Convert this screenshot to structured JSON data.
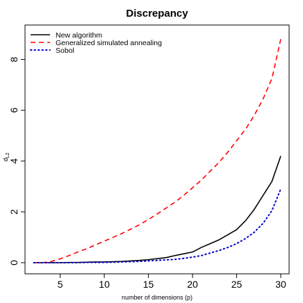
{
  "chart_data": {
    "type": "line",
    "title": "Discrepancy",
    "xlabel": "number of dimensions (p)",
    "ylabel": "d",
    "ylabel_subscript": "L2",
    "xlim": [
      2,
      30
    ],
    "ylim": [
      0,
      9
    ],
    "xticks": [
      5,
      10,
      15,
      20,
      25,
      30
    ],
    "yticks": [
      0,
      2,
      4,
      6,
      8
    ],
    "legend_position": "top-left",
    "x": [
      2,
      3,
      4,
      5,
      6,
      7,
      8,
      9,
      10,
      11,
      12,
      13,
      14,
      15,
      16,
      17,
      18,
      19,
      20,
      21,
      22,
      23,
      24,
      25,
      26,
      27,
      28,
      29,
      30
    ],
    "series": [
      {
        "name": "New algorithm",
        "style": "solid",
        "color": "#000000",
        "values": [
          0.0,
          0.0,
          0.0,
          0.0,
          0.01,
          0.01,
          0.02,
          0.03,
          0.03,
          0.04,
          0.05,
          0.07,
          0.09,
          0.12,
          0.16,
          0.2,
          0.28,
          0.35,
          0.42,
          0.6,
          0.75,
          0.9,
          1.1,
          1.3,
          1.65,
          2.1,
          2.65,
          3.2,
          4.2
        ]
      },
      {
        "name": "Generalized simulated annealing",
        "style": "dashed",
        "color": "#ff0000",
        "values": [
          0.0,
          0.0,
          0.05,
          0.15,
          0.28,
          0.42,
          0.55,
          0.7,
          0.85,
          1.0,
          1.15,
          1.32,
          1.5,
          1.7,
          1.92,
          2.15,
          2.38,
          2.65,
          2.95,
          3.25,
          3.6,
          3.95,
          4.35,
          4.8,
          5.25,
          5.8,
          6.45,
          7.25,
          8.8
        ]
      },
      {
        "name": "Sobol",
        "style": "dotted",
        "color": "#0000cc",
        "values": [
          0.0,
          0.0,
          0.0,
          0.0,
          0.0,
          0.0,
          0.01,
          0.01,
          0.01,
          0.02,
          0.03,
          0.04,
          0.05,
          0.07,
          0.09,
          0.11,
          0.13,
          0.17,
          0.22,
          0.28,
          0.38,
          0.48,
          0.6,
          0.75,
          0.95,
          1.2,
          1.55,
          2.05,
          2.9
        ]
      }
    ]
  }
}
